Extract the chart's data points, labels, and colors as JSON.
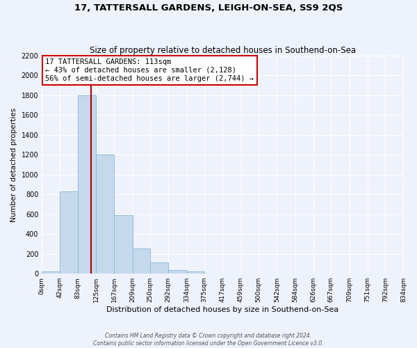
{
  "title": "17, TATTERSALL GARDENS, LEIGH-ON-SEA, SS9 2QS",
  "subtitle": "Size of property relative to detached houses in Southend-on-Sea",
  "xlabel": "Distribution of detached houses by size in Southend-on-Sea",
  "ylabel": "Number of detached properties",
  "bar_edges": [
    0,
    42,
    83,
    125,
    167,
    209,
    250,
    292,
    334,
    375,
    417,
    459,
    500,
    542,
    584,
    626,
    667,
    709,
    751,
    792,
    834
  ],
  "bar_heights": [
    25,
    830,
    1800,
    1200,
    590,
    255,
    115,
    40,
    25,
    0,
    0,
    0,
    0,
    0,
    0,
    0,
    0,
    0,
    0,
    0
  ],
  "bar_color": "#c5d9ed",
  "bar_edge_color": "#8ab4d4",
  "vline_x": 113,
  "vline_color": "#aa0000",
  "annotation_text": "17 TATTERSALL GARDENS: 113sqm\n← 43% of detached houses are smaller (2,128)\n56% of semi-detached houses are larger (2,744) →",
  "annotation_box_color": "#ffffff",
  "annotation_box_edge": "#cc0000",
  "ylim": [
    0,
    2200
  ],
  "yticks": [
    0,
    200,
    400,
    600,
    800,
    1000,
    1200,
    1400,
    1600,
    1800,
    2000,
    2200
  ],
  "tick_labels": [
    "0sqm",
    "42sqm",
    "83sqm",
    "125sqm",
    "167sqm",
    "209sqm",
    "250sqm",
    "292sqm",
    "334sqm",
    "375sqm",
    "417sqm",
    "459sqm",
    "500sqm",
    "542sqm",
    "584sqm",
    "626sqm",
    "667sqm",
    "709sqm",
    "751sqm",
    "792sqm",
    "834sqm"
  ],
  "footer_line1": "Contains HM Land Registry data © Crown copyright and database right 2024.",
  "footer_line2": "Contains public sector information licensed under the Open Government Licence v3.0.",
  "bg_color": "#eef2fb",
  "grid_color": "#ffffff"
}
